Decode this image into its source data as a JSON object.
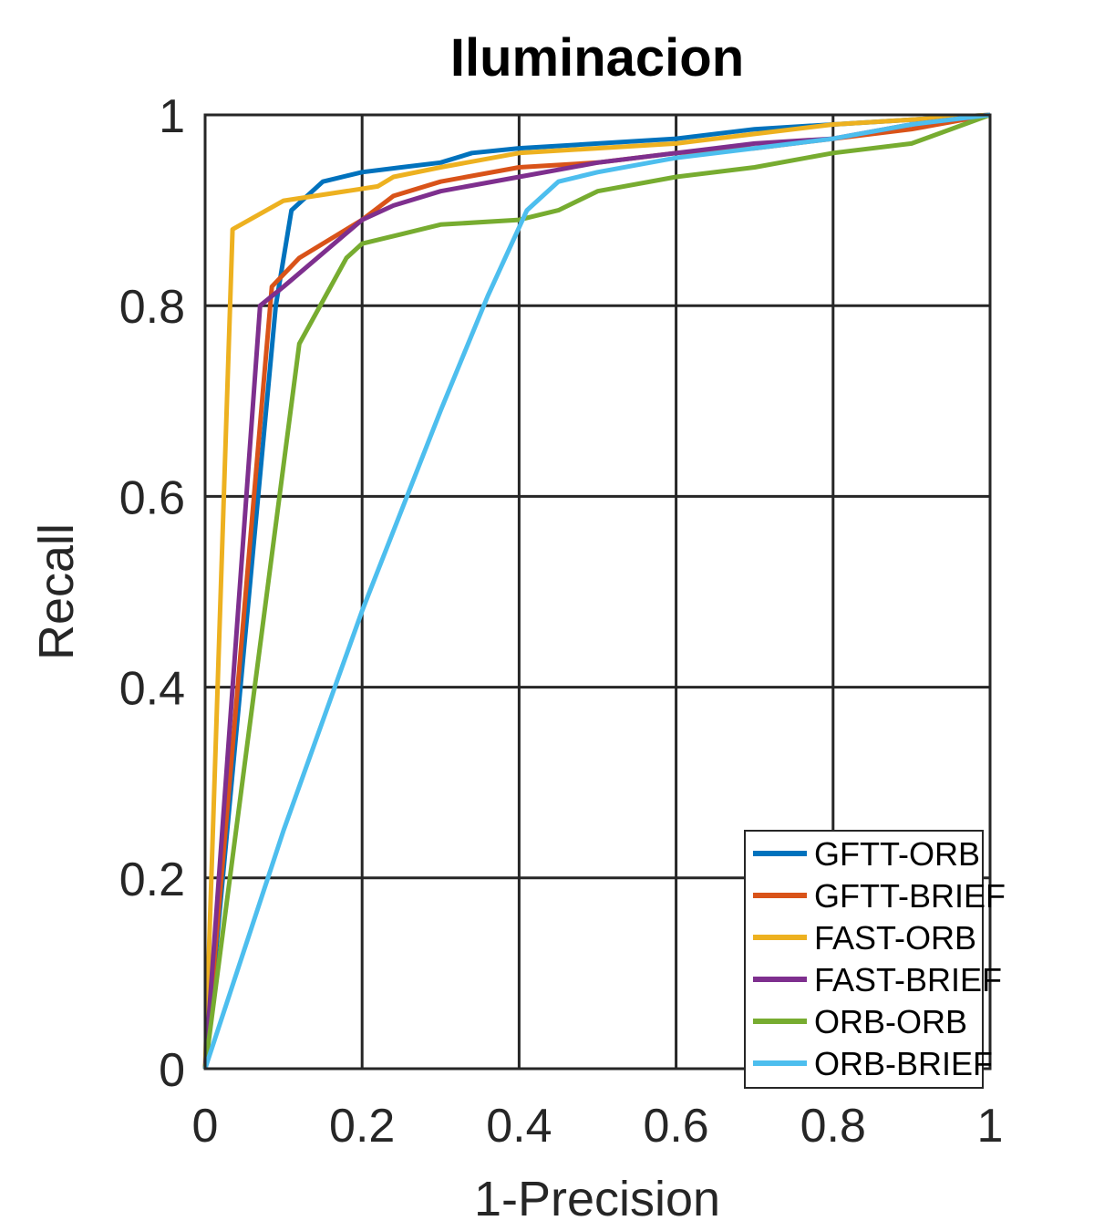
{
  "chart_data": {
    "type": "line",
    "title": "Iluminacion",
    "xlabel": "1-Precision",
    "ylabel": "Recall",
    "xlim": [
      0,
      1
    ],
    "ylim": [
      0,
      1
    ],
    "xticks": [
      "0",
      "0.2",
      "0.4",
      "0.6",
      "0.8",
      "1"
    ],
    "yticks": [
      "0",
      "0.2",
      "0.4",
      "0.6",
      "0.8",
      "1"
    ],
    "grid": true,
    "legend_position": "bottom-right",
    "series": [
      {
        "name": "GFTT-ORB",
        "color": "#0072BD",
        "x": [
          0,
          0.09,
          0.11,
          0.15,
          0.2,
          0.25,
          0.3,
          0.34,
          0.4,
          0.5,
          0.6,
          0.7,
          0.8,
          0.9,
          1.0
        ],
        "y": [
          0,
          0.8,
          0.9,
          0.93,
          0.94,
          0.945,
          0.95,
          0.96,
          0.965,
          0.97,
          0.975,
          0.985,
          0.99,
          0.995,
          1.0
        ]
      },
      {
        "name": "GFTT-BRIEF",
        "color": "#D95319",
        "x": [
          0,
          0.085,
          0.12,
          0.2,
          0.24,
          0.3,
          0.4,
          0.5,
          0.6,
          0.7,
          0.8,
          0.9,
          1.0
        ],
        "y": [
          0,
          0.82,
          0.85,
          0.89,
          0.915,
          0.93,
          0.945,
          0.95,
          0.96,
          0.965,
          0.975,
          0.985,
          1.0
        ]
      },
      {
        "name": "FAST-ORB",
        "color": "#EDB120",
        "x": [
          0,
          0.035,
          0.1,
          0.22,
          0.24,
          0.3,
          0.4,
          0.5,
          0.6,
          0.7,
          0.8,
          0.9,
          1.0
        ],
        "y": [
          0,
          0.88,
          0.91,
          0.925,
          0.935,
          0.945,
          0.96,
          0.965,
          0.97,
          0.98,
          0.99,
          0.995,
          1.0
        ]
      },
      {
        "name": "FAST-BRIEF",
        "color": "#7E2F8E",
        "x": [
          0,
          0.07,
          0.1,
          0.2,
          0.24,
          0.3,
          0.4,
          0.5,
          0.6,
          0.7,
          0.8,
          0.9,
          1.0
        ],
        "y": [
          0,
          0.8,
          0.82,
          0.89,
          0.905,
          0.92,
          0.935,
          0.95,
          0.96,
          0.97,
          0.975,
          0.99,
          1.0
        ]
      },
      {
        "name": "ORB-ORB",
        "color": "#77AC30",
        "x": [
          0,
          0.12,
          0.18,
          0.2,
          0.25,
          0.3,
          0.4,
          0.45,
          0.5,
          0.6,
          0.7,
          0.8,
          0.9,
          1.0
        ],
        "y": [
          0,
          0.76,
          0.85,
          0.865,
          0.875,
          0.885,
          0.89,
          0.9,
          0.92,
          0.935,
          0.945,
          0.96,
          0.97,
          1.0
        ]
      },
      {
        "name": "ORB-BRIEF",
        "color": "#4DBEEE",
        "x": [
          0,
          0.1,
          0.2,
          0.3,
          0.36,
          0.41,
          0.45,
          0.5,
          0.6,
          0.7,
          0.8,
          0.9,
          1.0
        ],
        "y": [
          0,
          0.25,
          0.48,
          0.69,
          0.81,
          0.9,
          0.93,
          0.94,
          0.955,
          0.965,
          0.975,
          0.99,
          1.0
        ]
      }
    ]
  }
}
